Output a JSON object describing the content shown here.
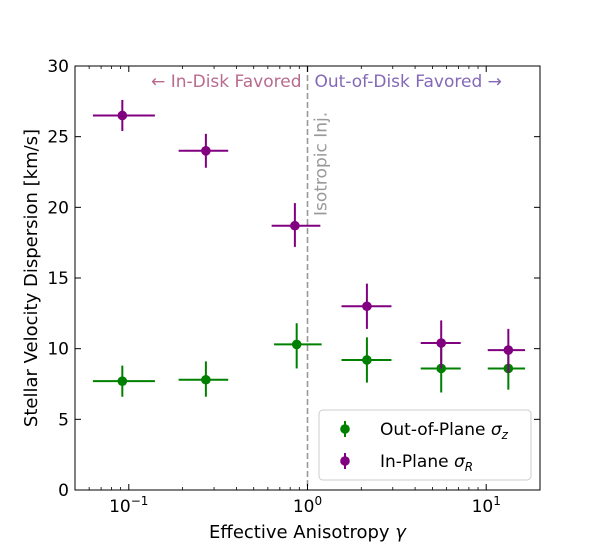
{
  "chart_data": {
    "type": "scatter",
    "title": "",
    "xlabel": "Effective Anisotropy γ",
    "ylabel": "Stellar Velocity Dispersion [km/s]",
    "xscale": "log",
    "xlim": [
      0.05,
      20
    ],
    "ylim": [
      0,
      30
    ],
    "grid": false,
    "legend_position": "lower-right",
    "x_ticks": [
      {
        "value": 0.1,
        "base": "10",
        "exp": "−1"
      },
      {
        "value": 1,
        "base": "10",
        "exp": "0"
      },
      {
        "value": 10,
        "base": "10",
        "exp": "1"
      }
    ],
    "y_ticks": [
      0,
      5,
      10,
      15,
      20,
      25,
      30
    ],
    "series": [
      {
        "name_main": "Out-of-Plane ",
        "name_sym": "σ",
        "name_sub": "z",
        "color": "#008000",
        "points": [
          {
            "x": 0.092,
            "x_err": [
              0.063,
              0.14
            ],
            "y": 7.7,
            "y_err": [
              6.6,
              8.8
            ]
          },
          {
            "x": 0.27,
            "x_err": [
              0.19,
              0.36
            ],
            "y": 7.8,
            "y_err": [
              6.6,
              9.1
            ]
          },
          {
            "x": 0.87,
            "x_err": [
              0.65,
              1.2
            ],
            "y": 10.3,
            "y_err": [
              8.6,
              11.8
            ]
          },
          {
            "x": 2.15,
            "x_err": [
              1.55,
              2.95
            ],
            "y": 9.2,
            "y_err": [
              7.6,
              10.8
            ]
          },
          {
            "x": 5.6,
            "x_err": [
              4.3,
              7.2
            ],
            "y": 8.6,
            "y_err": [
              6.9,
              10.1
            ]
          },
          {
            "x": 13.3,
            "x_err": [
              10.2,
              16.5
            ],
            "y": 8.6,
            "y_err": [
              7.1,
              10.1
            ]
          }
        ]
      },
      {
        "name_main": "In-Plane ",
        "name_sym": "σ",
        "name_sub": "R",
        "color": "#800080",
        "points": [
          {
            "x": 0.092,
            "x_err": [
              0.063,
              0.14
            ],
            "y": 26.5,
            "y_err": [
              25.4,
              27.6
            ]
          },
          {
            "x": 0.27,
            "x_err": [
              0.19,
              0.36
            ],
            "y": 24.0,
            "y_err": [
              22.8,
              25.2
            ]
          },
          {
            "x": 0.85,
            "x_err": [
              0.63,
              1.18
            ],
            "y": 18.7,
            "y_err": [
              17.2,
              20.3
            ]
          },
          {
            "x": 2.15,
            "x_err": [
              1.55,
              2.95
            ],
            "y": 13.0,
            "y_err": [
              11.4,
              14.6
            ]
          },
          {
            "x": 5.6,
            "x_err": [
              4.3,
              7.2
            ],
            "y": 10.4,
            "y_err": [
              8.6,
              12.0
            ]
          },
          {
            "x": 13.3,
            "x_err": [
              10.2,
              16.5
            ],
            "y": 9.9,
            "y_err": [
              8.3,
              11.4
            ]
          }
        ]
      }
    ],
    "reference_line": {
      "x": 1,
      "label": "Isotropic Inj.",
      "color": "#999999"
    },
    "region_labels": [
      {
        "text": "← In-Disk Favored",
        "color": "#b86b8c",
        "side": "left"
      },
      {
        "text": "Out-of-Disk Favored →",
        "color": "#8468b8",
        "side": "right"
      }
    ]
  }
}
